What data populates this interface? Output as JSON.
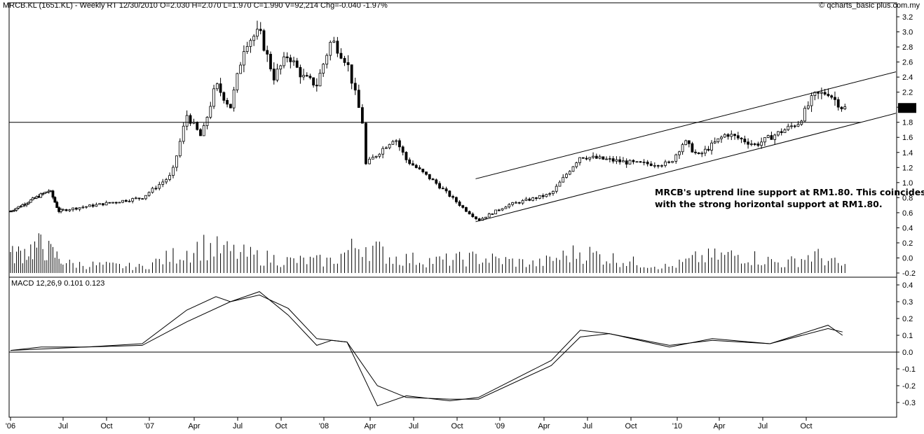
{
  "header": {
    "title": "MRCB.KL (1651.KL) - Weekly RT  12/30/2010  O=2.030  H=2.070  L=1.970  C=1.990  V=92,214  Chg=-0.040  -1.97%",
    "copyright": "© qcharts_basic plus.com.my"
  },
  "annotation": {
    "line1": "MRCB's uptrend line support at RM1.80. This coincides",
    "line2": "with the strong horizontal support at RM1.80."
  },
  "last_price_label": "1.99",
  "macd_label": "MACD 12,26,9  0.101  0.123",
  "chart_data": [
    {
      "type": "candlestick",
      "x_start": "2006-01",
      "x_end": "2010-12",
      "ylim": [
        -0.2,
        3.2
      ],
      "y_ticks": [
        "3.2",
        "3.0",
        "2.8",
        "2.6",
        "2.4",
        "2.2",
        "2.0",
        "1.8",
        "1.6",
        "1.4",
        "1.2",
        "1.0",
        "0.8",
        "0.6",
        "0.4",
        "0.2",
        "0.0",
        "-0.2"
      ],
      "x_tick_labels": [
        "'06",
        "Jul",
        "Oct",
        "'07",
        "Apr",
        "Jul",
        "Oct",
        "'08",
        "Apr",
        "Jul",
        "Oct",
        "'09",
        "Apr",
        "Jul",
        "Oct",
        "'10",
        "Apr",
        "Jul",
        "Oct"
      ],
      "last_price": 1.99,
      "horizontal_support": 1.8,
      "key_points": [
        {
          "date": "2006-01",
          "close": 0.62
        },
        {
          "date": "2006-05",
          "close": 0.9
        },
        {
          "date": "2006-06",
          "close": 0.62
        },
        {
          "date": "2006-12",
          "close": 0.8
        },
        {
          "date": "2007-02",
          "close": 1.1
        },
        {
          "date": "2007-03",
          "close": 1.9
        },
        {
          "date": "2007-04",
          "close": 1.6
        },
        {
          "date": "2007-05",
          "close": 2.3
        },
        {
          "date": "2007-06",
          "close": 2.0
        },
        {
          "date": "2007-07",
          "close": 2.85
        },
        {
          "date": "2007-08",
          "close": 3.0
        },
        {
          "date": "2007-09",
          "close": 2.4
        },
        {
          "date": "2007-10",
          "close": 2.7
        },
        {
          "date": "2007-11",
          "close": 2.4
        },
        {
          "date": "2007-12",
          "close": 2.3
        },
        {
          "date": "2008-01",
          "close": 2.9
        },
        {
          "date": "2008-02",
          "close": 2.6
        },
        {
          "date": "2008-03",
          "close": 1.8
        },
        {
          "date": "2008-03",
          "close": 1.2
        },
        {
          "date": "2008-05",
          "close": 1.6
        },
        {
          "date": "2008-06",
          "close": 1.3
        },
        {
          "date": "2008-08",
          "close": 1.0
        },
        {
          "date": "2008-10",
          "close": 0.65
        },
        {
          "date": "2008-11",
          "close": 0.5
        },
        {
          "date": "2009-01",
          "close": 0.7
        },
        {
          "date": "2009-04",
          "close": 0.85
        },
        {
          "date": "2009-06",
          "close": 1.35
        },
        {
          "date": "2009-08",
          "close": 1.3
        },
        {
          "date": "2009-10",
          "close": 1.25
        },
        {
          "date": "2009-12",
          "close": 1.25
        },
        {
          "date": "2010-01",
          "close": 1.55
        },
        {
          "date": "2010-02",
          "close": 1.35
        },
        {
          "date": "2010-04",
          "close": 1.65
        },
        {
          "date": "2010-06",
          "close": 1.5
        },
        {
          "date": "2010-08",
          "close": 1.7
        },
        {
          "date": "2010-09",
          "close": 1.8
        },
        {
          "date": "2010-10",
          "close": 2.15
        },
        {
          "date": "2010-11",
          "close": 2.2
        },
        {
          "date": "2010-12",
          "close": 1.99
        }
      ],
      "volume_key_points": [
        {
          "date": "2006-01",
          "v": 0.3
        },
        {
          "date": "2006-04",
          "v": 0.45
        },
        {
          "date": "2006-07",
          "v": 0.15
        },
        {
          "date": "2006-12",
          "v": 0.1
        },
        {
          "date": "2007-04",
          "v": 0.45
        },
        {
          "date": "2007-07",
          "v": 0.3
        },
        {
          "date": "2007-10",
          "v": 0.2
        },
        {
          "date": "2008-01",
          "v": 0.2
        },
        {
          "date": "2008-03",
          "v": 0.5
        },
        {
          "date": "2008-05",
          "v": 0.25
        },
        {
          "date": "2008-08",
          "v": 0.2
        },
        {
          "date": "2008-11",
          "v": 0.25
        },
        {
          "date": "2009-03",
          "v": 0.15
        },
        {
          "date": "2009-06",
          "v": 0.35
        },
        {
          "date": "2009-09",
          "v": 0.2
        },
        {
          "date": "2009-12",
          "v": 0.1
        },
        {
          "date": "2010-02",
          "v": 0.25
        },
        {
          "date": "2010-05",
          "v": 0.3
        },
        {
          "date": "2010-08",
          "v": 0.15
        },
        {
          "date": "2010-10",
          "v": 0.3
        },
        {
          "date": "2010-12",
          "v": 0.12
        }
      ],
      "trend_channel": {
        "lower": [
          {
            "date": "2008-11",
            "y": 0.48
          },
          {
            "date": "2010-12",
            "y": 1.8
          }
        ],
        "upper": [
          {
            "date": "2008-11",
            "y": 1.05
          },
          {
            "date": "2010-12",
            "y": 2.42
          }
        ]
      }
    },
    {
      "type": "line",
      "name": "MACD 12,26,9",
      "ylim": [
        -0.3,
        0.4
      ],
      "y_ticks": [
        "0.4",
        "0.3",
        "0.2",
        "0.1",
        "0.0",
        "-0.1",
        "-0.2",
        "-0.3"
      ],
      "series": [
        {
          "name": "MACD",
          "points": [
            {
              "date": "2006-01",
              "y": 0.01
            },
            {
              "date": "2006-04",
              "y": 0.03
            },
            {
              "date": "2006-08",
              "y": 0.03
            },
            {
              "date": "2006-12",
              "y": 0.05
            },
            {
              "date": "2007-03",
              "y": 0.25
            },
            {
              "date": "2007-05",
              "y": 0.33
            },
            {
              "date": "2007-06",
              "y": 0.3
            },
            {
              "date": "2007-08",
              "y": 0.36
            },
            {
              "date": "2007-10",
              "y": 0.22
            },
            {
              "date": "2007-12",
              "y": 0.04
            },
            {
              "date": "2008-01",
              "y": 0.07
            },
            {
              "date": "2008-02",
              "y": 0.06
            },
            {
              "date": "2008-04",
              "y": -0.32
            },
            {
              "date": "2008-06",
              "y": -0.26
            },
            {
              "date": "2008-09",
              "y": -0.29
            },
            {
              "date": "2008-11",
              "y": -0.27
            },
            {
              "date": "2009-04",
              "y": -0.05
            },
            {
              "date": "2009-06",
              "y": 0.13
            },
            {
              "date": "2009-08",
              "y": 0.11
            },
            {
              "date": "2009-12",
              "y": 0.03
            },
            {
              "date": "2010-03",
              "y": 0.08
            },
            {
              "date": "2010-07",
              "y": 0.05
            },
            {
              "date": "2010-11",
              "y": 0.16
            },
            {
              "date": "2010-12",
              "y": 0.1
            }
          ]
        },
        {
          "name": "Signal",
          "points": [
            {
              "date": "2006-01",
              "y": 0.01
            },
            {
              "date": "2006-08",
              "y": 0.03
            },
            {
              "date": "2006-12",
              "y": 0.04
            },
            {
              "date": "2007-03",
              "y": 0.18
            },
            {
              "date": "2007-06",
              "y": 0.3
            },
            {
              "date": "2007-08",
              "y": 0.34
            },
            {
              "date": "2007-10",
              "y": 0.26
            },
            {
              "date": "2007-12",
              "y": 0.08
            },
            {
              "date": "2008-02",
              "y": 0.06
            },
            {
              "date": "2008-04",
              "y": -0.2
            },
            {
              "date": "2008-06",
              "y": -0.27
            },
            {
              "date": "2008-09",
              "y": -0.28
            },
            {
              "date": "2008-11",
              "y": -0.28
            },
            {
              "date": "2009-04",
              "y": -0.08
            },
            {
              "date": "2009-06",
              "y": 0.09
            },
            {
              "date": "2009-08",
              "y": 0.11
            },
            {
              "date": "2009-12",
              "y": 0.04
            },
            {
              "date": "2010-03",
              "y": 0.07
            },
            {
              "date": "2010-07",
              "y": 0.05
            },
            {
              "date": "2010-11",
              "y": 0.14
            },
            {
              "date": "2010-12",
              "y": 0.12
            }
          ]
        }
      ],
      "zero_line": 0.0
    }
  ]
}
